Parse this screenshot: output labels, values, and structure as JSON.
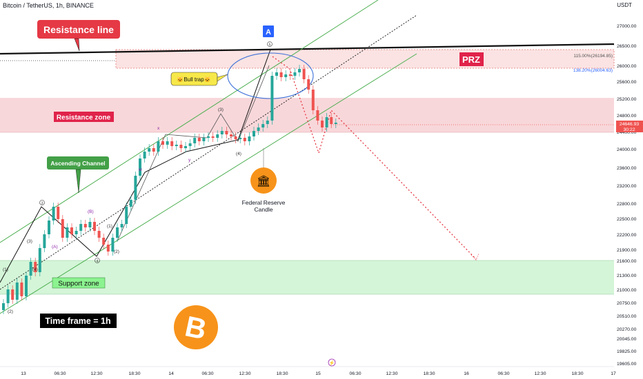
{
  "header": {
    "symbol": "Bitcoin / TetherUS, 1h, BINANCE",
    "currency": "USDT"
  },
  "colors": {
    "up": "#26a69a",
    "down": "#ef5350",
    "channel": "#4caf50",
    "resistance_zone": "#f8d7da",
    "support_zone": "#d4f5d8",
    "prz_zone": "#fbe3e3",
    "btc": "#f7931a",
    "label_red": "#e53945",
    "label_green": "#43a047"
  },
  "annotations": {
    "resistance_line": "Resistance line",
    "resistance_zone": "Resistance zone",
    "ascending_channel": "Ascending Channel",
    "support_zone": "Support zone",
    "bull_trap": "🐱Bull trap🐱",
    "prz": "PRZ",
    "wave_a": "A",
    "federal_reserve": "Federal Reserve",
    "candle": "Candle",
    "time_frame": "Time frame = 1h",
    "fib_115": "115.00%(26194.85)",
    "fib_138": "138.20%(26004.63)"
  },
  "wave_labels": [
    "(1)",
    "(2)",
    "(3)",
    "(4)",
    "(5)",
    "(1)",
    "(2)",
    "(3)",
    "(4)",
    "(5)",
    "(B)",
    "(A)",
    "(C)",
    "w",
    "x",
    "y"
  ],
  "price_axis": {
    "labels": [
      "27000.00",
      "26500.00",
      "26000.00",
      "25600.00",
      "25200.00",
      "24800.00",
      "24400.00",
      "24000.00",
      "23600.00",
      "23200.00",
      "22800.00",
      "22500.00",
      "22200.00",
      "21900.00",
      "21600.00",
      "21300.00",
      "21000.00",
      "20750.00",
      "20510.00",
      "20270.00",
      "20045.00",
      "19825.00",
      "19605.00"
    ],
    "current_price": "24646.93",
    "countdown": "30:22"
  },
  "time_axis": {
    "labels": [
      "13",
      "06:30",
      "12:30",
      "18:30",
      "14",
      "06:30",
      "12:30",
      "18:30",
      "15",
      "06:30",
      "12:30",
      "18:30",
      "16",
      "06:30",
      "12:30",
      "18:30",
      "17"
    ]
  }
}
